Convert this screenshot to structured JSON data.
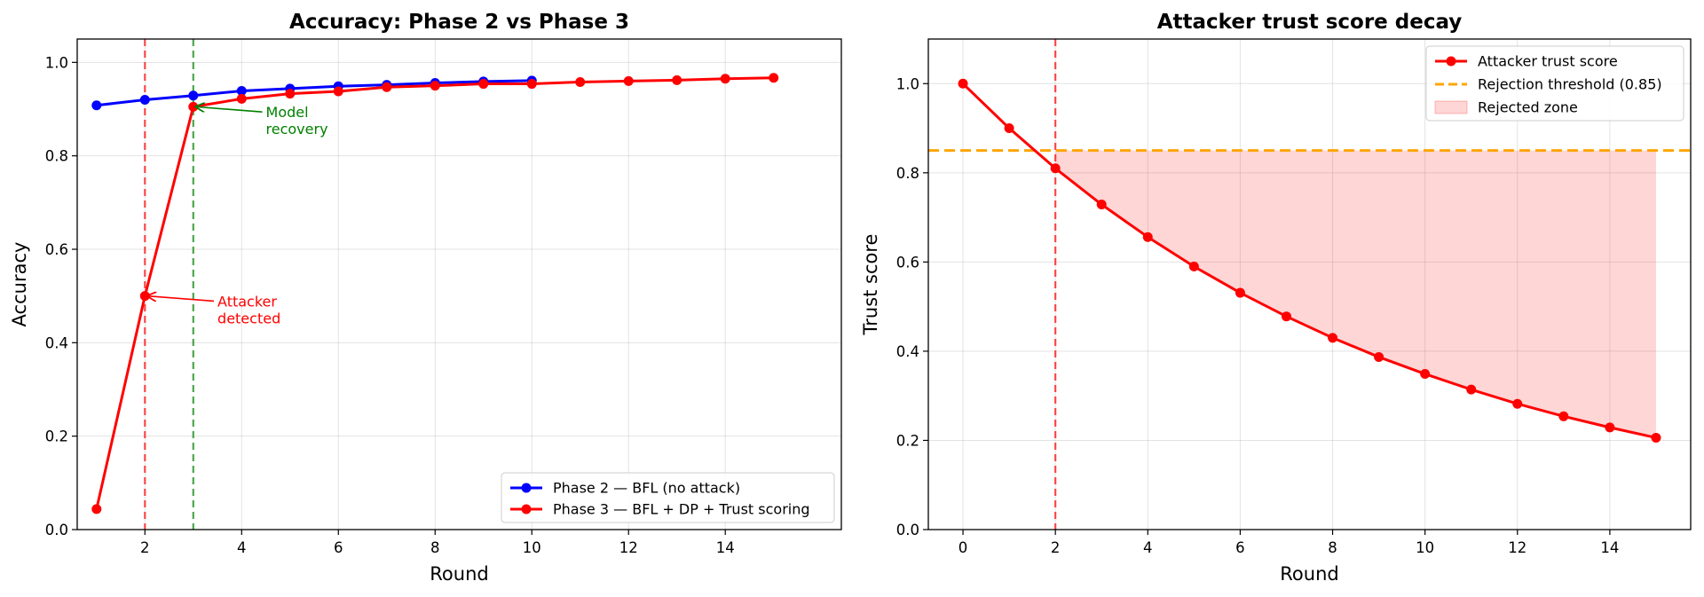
{
  "chart_data": [
    {
      "type": "line",
      "title": "Accuracy: Phase 2 vs Phase 3",
      "xlabel": "Round",
      "ylabel": "Accuracy",
      "xlim": [
        0.6,
        16.4
      ],
      "ylim": [
        0,
        1.05
      ],
      "xticks": [
        2,
        4,
        6,
        8,
        10,
        12,
        14
      ],
      "yticks": [
        0.0,
        0.2,
        0.4,
        0.6,
        0.8,
        1.0
      ],
      "grid": true,
      "legend": "bottom-right",
      "series": [
        {
          "name": "Phase 2 — BFL (no attack)",
          "color": "#0000ff",
          "x": [
            1,
            2,
            3,
            4,
            5,
            6,
            7,
            8,
            9,
            10
          ],
          "y": [
            0.908,
            0.92,
            0.929,
            0.939,
            0.944,
            0.949,
            0.952,
            0.956,
            0.959,
            0.961
          ]
        },
        {
          "name": "Phase 3 — BFL + DP + Trust scoring",
          "color": "#ff0000",
          "x": [
            1,
            2,
            3,
            4,
            5,
            6,
            7,
            8,
            9,
            10,
            11,
            12,
            13,
            14,
            15
          ],
          "y": [
            0.044,
            0.5,
            0.905,
            0.922,
            0.933,
            0.938,
            0.947,
            0.95,
            0.954,
            0.954,
            0.958,
            0.96,
            0.962,
            0.965,
            0.967
          ]
        }
      ],
      "vlines": [
        {
          "x": 2,
          "color": "#ff0000"
        },
        {
          "x": 3,
          "color": "#008000"
        }
      ],
      "annotations": [
        {
          "text": [
            "Attacker",
            "detected"
          ],
          "x": 2,
          "y": 0.5,
          "text_x": 3.5,
          "text_y": 0.47,
          "color": "#ff0000"
        },
        {
          "text": [
            "Model",
            "recovery"
          ],
          "x": 3,
          "y": 0.905,
          "text_x": 4.5,
          "text_y": 0.875,
          "color": "#008000"
        }
      ]
    },
    {
      "type": "line",
      "title": "Attacker trust score decay",
      "xlabel": "Round",
      "ylabel": "Trust score",
      "xlim": [
        -0.75,
        15.75
      ],
      "ylim": [
        0,
        1.1
      ],
      "xticks": [
        0,
        2,
        4,
        6,
        8,
        10,
        12,
        14
      ],
      "yticks": [
        0.0,
        0.2,
        0.4,
        0.6,
        0.8,
        1.0
      ],
      "grid": true,
      "legend": "top-right",
      "series": [
        {
          "name": "Attacker trust score",
          "color": "#ff0000",
          "x": [
            0,
            1,
            2,
            3,
            4,
            5,
            6,
            7,
            8,
            9,
            10,
            11,
            12,
            13,
            14,
            15
          ],
          "y": [
            1.0,
            0.9,
            0.81,
            0.729,
            0.656,
            0.59,
            0.531,
            0.478,
            0.43,
            0.387,
            0.349,
            0.314,
            0.282,
            0.254,
            0.229,
            0.206
          ]
        }
      ],
      "hline": {
        "name": "Rejection threshold (0.85)",
        "y": 0.85,
        "color": "#ffa500"
      },
      "fill": {
        "name": "Rejected zone",
        "from_x": 2,
        "to_x": 15,
        "color": "#ff0000"
      },
      "vlines": [
        {
          "x": 2,
          "color": "#ff0000"
        }
      ]
    }
  ]
}
